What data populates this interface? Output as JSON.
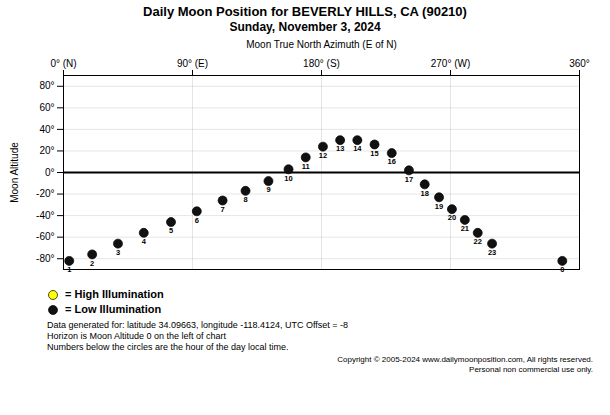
{
  "chart_data": {
    "type": "scatter",
    "title": "Daily Moon Position for BEVERLY HILLS, CA (90210)",
    "subtitle": "Sunday, November 3, 2024",
    "x_label": "Moon True North Azimuth (E of N)",
    "y_label": "Moon Altitude",
    "xlim": [
      0,
      360
    ],
    "ylim": [
      -90,
      90
    ],
    "xticks": [
      {
        "value": 0,
        "label": "0° (N)"
      },
      {
        "value": 90,
        "label": "90° (E)"
      },
      {
        "value": 180,
        "label": "180° (S)"
      },
      {
        "value": 270,
        "label": "270° (W)"
      },
      {
        "value": 360,
        "label": "360°"
      }
    ],
    "yticks": [
      {
        "value": -80,
        "label": "-80°"
      },
      {
        "value": -60,
        "label": "-60°"
      },
      {
        "value": -40,
        "label": "-40°"
      },
      {
        "value": -20,
        "label": "-20°"
      },
      {
        "value": 0,
        "label": "0°"
      },
      {
        "value": 20,
        "label": "20°"
      },
      {
        "value": 40,
        "label": "40°"
      },
      {
        "value": 60,
        "label": "60°"
      },
      {
        "value": 80,
        "label": "80°"
      }
    ],
    "grid": true,
    "horizon": 0,
    "series": [
      {
        "name": "= High Illumination",
        "color": "#FFFF00",
        "marker": "circle",
        "x": [],
        "values": [],
        "labels": []
      },
      {
        "name": "= Low Illumination",
        "color": "#111111",
        "marker": "circle",
        "x": [
          348,
          4,
          20,
          38,
          56,
          75,
          93,
          111,
          127,
          143,
          157,
          169,
          181,
          193,
          205,
          217,
          229,
          241,
          252,
          262,
          271,
          280,
          289,
          299
        ],
        "values": [
          -82,
          -82,
          -76,
          -66,
          -56,
          -46,
          -36,
          -26,
          -17,
          -8,
          3,
          14,
          24,
          30,
          30,
          26,
          18,
          2,
          -11,
          -23,
          -34,
          -44,
          -56,
          -66
        ],
        "labels": [
          0,
          1,
          2,
          3,
          4,
          5,
          6,
          7,
          8,
          9,
          10,
          11,
          12,
          13,
          14,
          15,
          16,
          17,
          18,
          19,
          20,
          21,
          22,
          23
        ]
      }
    ],
    "annotations": [
      "Data generated for: latitude 34.09663, longitude -118.4124, UTC Offset = -8",
      "Horizon is Moon Altitude 0 on the left of chart",
      "Numbers below the circles are the hour of the day local time."
    ],
    "copyright": [
      "Copyright © 2005-2024 www.dailymoonposition.com, All rights reserved.",
      "Personal non commercial use only."
    ]
  }
}
